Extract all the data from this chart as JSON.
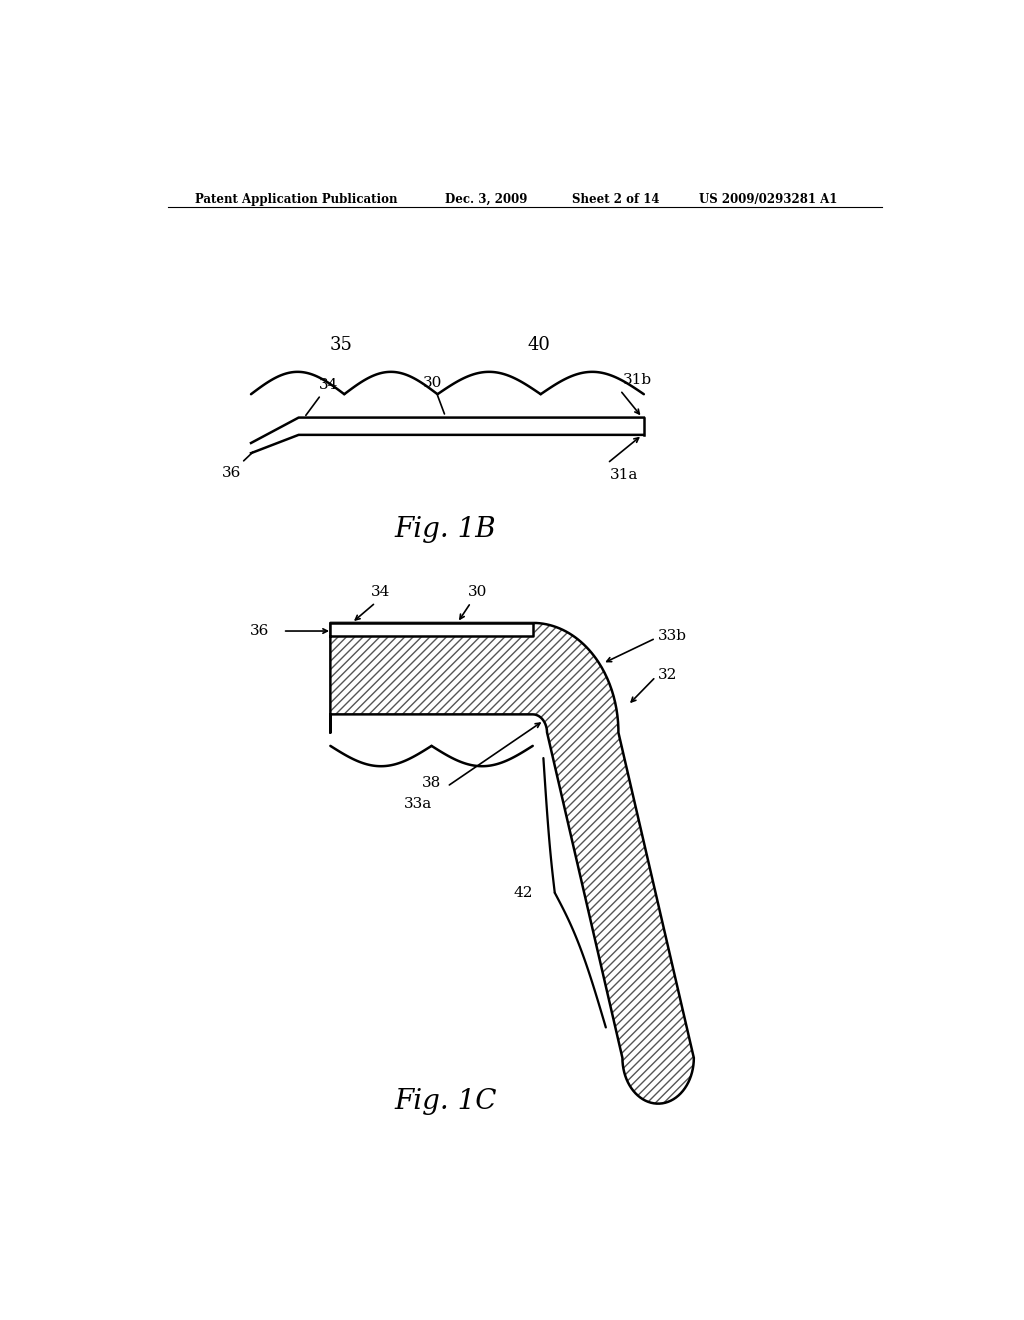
{
  "bg_color": "#ffffff",
  "line_color": "#000000",
  "header_text": "Patent Application Publication",
  "header_date": "Dec. 3, 2009",
  "header_sheet": "Sheet 2 of 14",
  "header_patent": "US 2009/0293281 A1",
  "fig1b_label": "Fig. 1B",
  "fig1c_label": "Fig. 1C"
}
